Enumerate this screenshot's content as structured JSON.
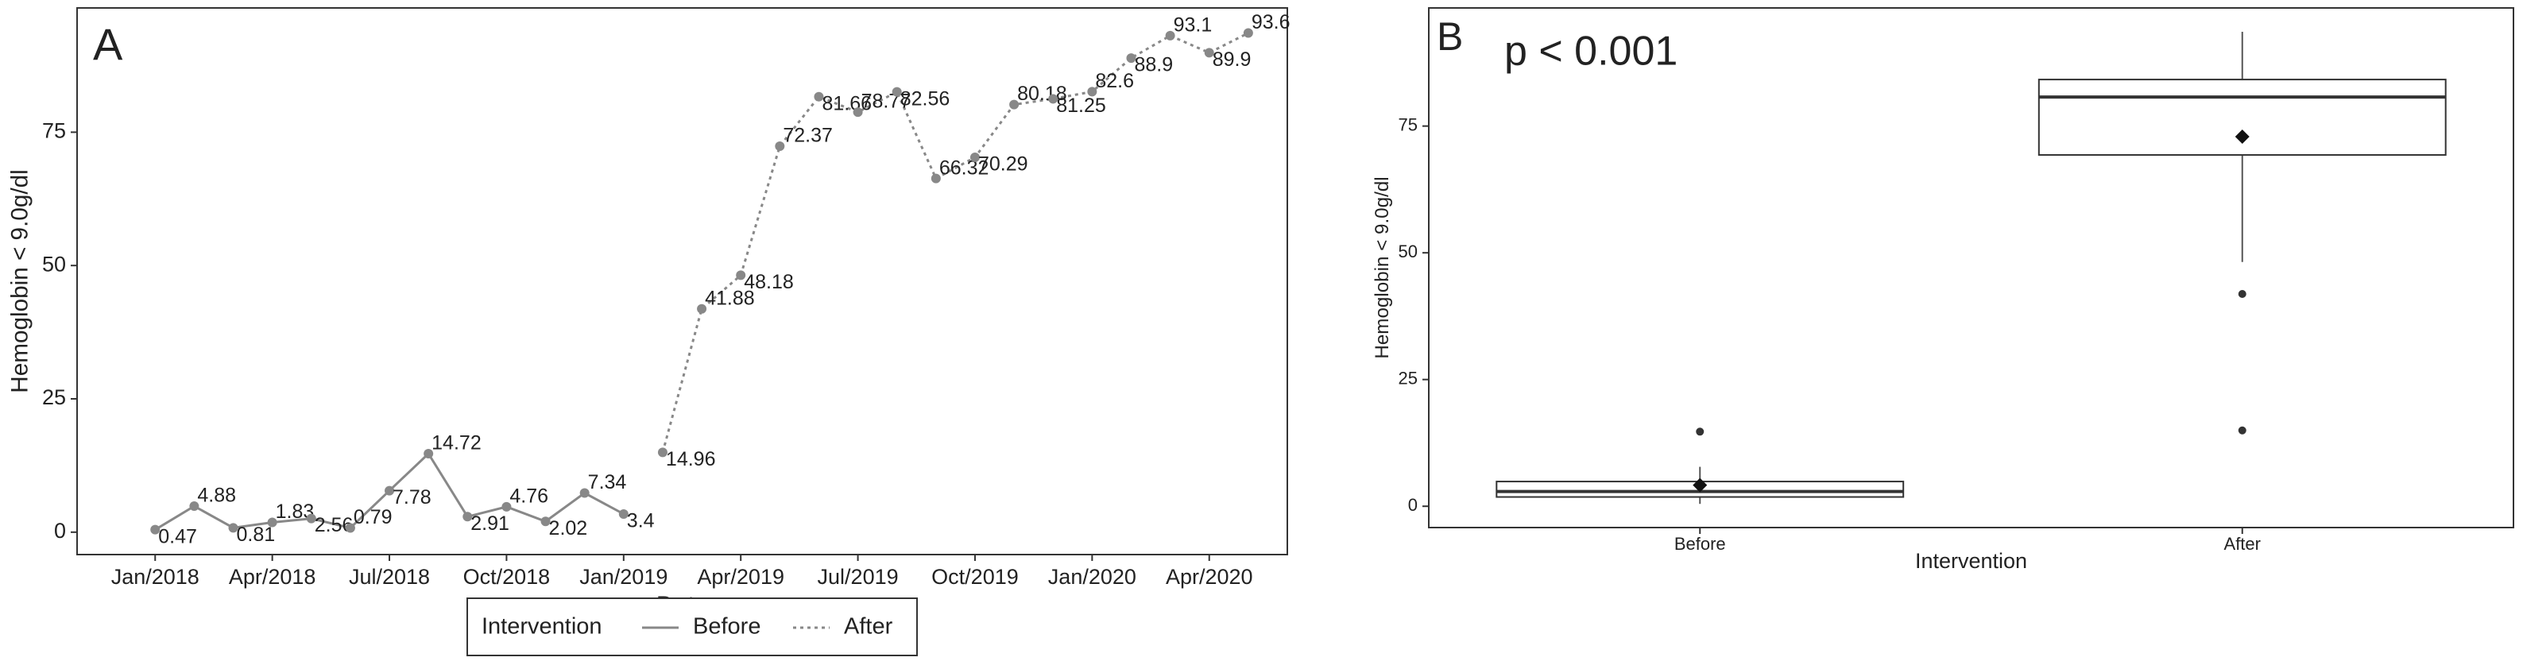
{
  "chart_data": [
    {
      "type": "line",
      "panel": "A",
      "x_label": "Date",
      "y_label": "Hemoglobin < 9.0g/dl",
      "legend_title": "Intervention",
      "legend": "bottom",
      "xlim": [
        "2017-11",
        "2020-06"
      ],
      "xticks": [
        {
          "value": "2018-01",
          "label": "Jan/2018"
        },
        {
          "value": "2018-04",
          "label": "Apr/2018"
        },
        {
          "value": "2018-07",
          "label": "Jul/2018"
        },
        {
          "value": "2018-10",
          "label": "Oct/2018"
        },
        {
          "value": "2019-01",
          "label": "Jan/2019"
        },
        {
          "value": "2019-04",
          "label": "Apr/2019"
        },
        {
          "value": "2019-07",
          "label": "Jul/2019"
        },
        {
          "value": "2019-10",
          "label": "Oct/2019"
        },
        {
          "value": "2020-01",
          "label": "Jan/2020"
        },
        {
          "value": "2020-04",
          "label": "Apr/2020"
        }
      ],
      "ylim": [
        -4.2,
        98.3
      ],
      "yticks": [
        0,
        25,
        50,
        75
      ],
      "series": [
        {
          "name": "Before",
          "color": "#888888",
          "dash": "solid",
          "x": [
            "2018-01",
            "2018-02",
            "2018-03",
            "2018-04",
            "2018-05",
            "2018-06",
            "2018-07",
            "2018-08",
            "2018-09",
            "2018-10",
            "2018-11",
            "2018-12",
            "2019-01"
          ],
          "values": [
            0.47,
            4.88,
            0.81,
            1.83,
            2.56,
            0.79,
            7.78,
            14.72,
            2.91,
            4.76,
            2.02,
            7.34,
            3.4
          ]
        },
        {
          "name": "After",
          "color": "#888888",
          "dash": "dotted",
          "x": [
            "2019-02",
            "2019-03",
            "2019-04",
            "2019-05",
            "2019-06",
            "2019-07",
            "2019-08",
            "2019-09",
            "2019-10",
            "2019-11",
            "2019-12",
            "2020-01",
            "2020-02",
            "2020-03",
            "2020-04",
            "2020-05"
          ],
          "values": [
            14.96,
            41.88,
            48.18,
            72.37,
            81.66,
            78.77,
            82.56,
            66.32,
            70.29,
            80.18,
            81.25,
            82.6,
            88.9,
            93.1,
            89.9,
            93.6
          ]
        }
      ]
    },
    {
      "type": "box",
      "panel": "B",
      "annotation": "p < 0.001",
      "x_label": "Intervention",
      "y_label": "Hemoglobin < 9.0g/dl",
      "categories": [
        "Before",
        "After"
      ],
      "ylim": [
        -4.2,
        98.3
      ],
      "yticks": [
        0,
        25,
        50,
        75
      ],
      "boxes": [
        {
          "whislo": 0.47,
          "q1": 1.83,
          "median": 2.91,
          "q3": 4.88,
          "whishi": 7.78,
          "mean": 4.17,
          "fliers": [
            14.72
          ]
        },
        {
          "whislo": 48.18,
          "q1": 69.3,
          "median": 80.72,
          "q3": 84.18,
          "whishi": 93.6,
          "mean": 72.91,
          "fliers": [
            41.88,
            14.96
          ]
        }
      ]
    }
  ]
}
